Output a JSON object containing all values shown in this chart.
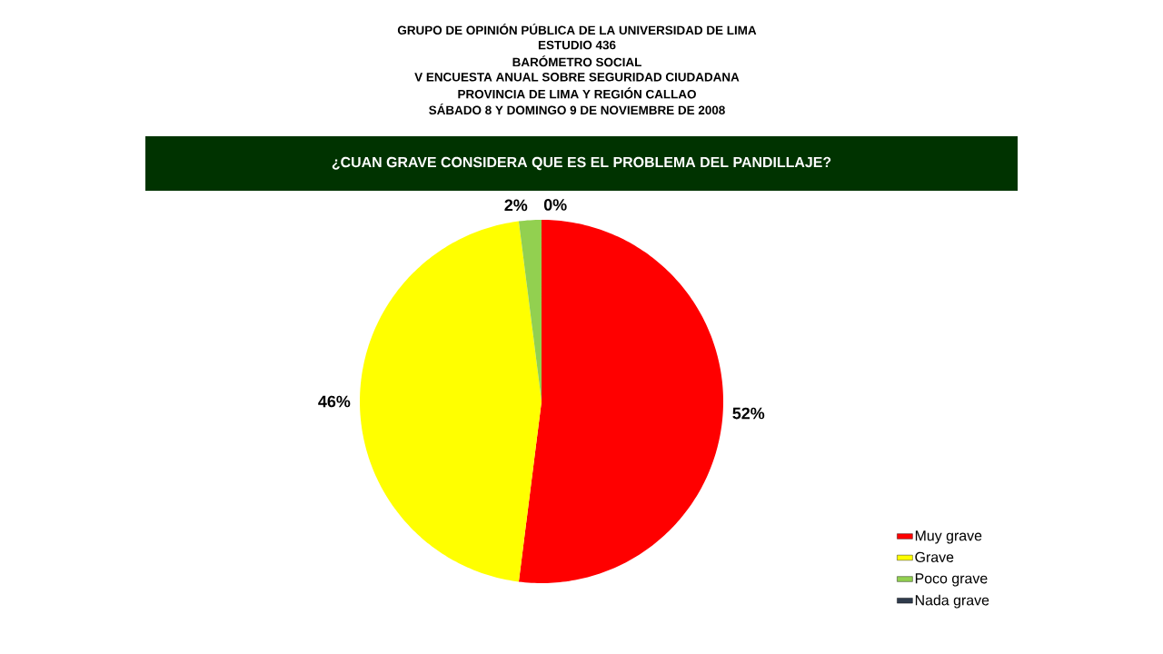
{
  "chart_data": {
    "type": "pie",
    "title": "¿CUAN GRAVE CONSIDERA QUE ES EL PROBLEMA DEL PANDILLAJE?",
    "annotations": [
      "GRUPO DE OPINIÓN PÚBLICA DE LA UNIVERSIDAD DE LIMA",
      "ESTUDIO 436",
      "BARÓMETRO SOCIAL",
      "V ENCUESTA ANUAL SOBRE SEGURIDAD CIUDADANA",
      "PROVINCIA DE LIMA Y REGIÓN CALLAO",
      "SÁBADO 8 Y DOMINGO 9 DE NOVIEMBRE DE 2008"
    ],
    "categories": [
      "Muy grave",
      "Grave",
      "Poco grave",
      "Nada grave"
    ],
    "values": [
      52,
      46,
      2,
      0
    ],
    "value_labels": [
      "52%",
      "46%",
      "2%",
      "0%"
    ],
    "colors": [
      "#ff0000",
      "#ffff00",
      "#92d050",
      "#2f3b4c"
    ],
    "legend": "bottom right"
  }
}
